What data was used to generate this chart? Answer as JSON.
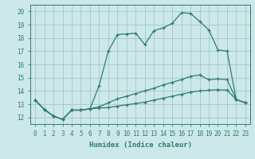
{
  "background_color": "#cce8e8",
  "grid_color": "#aacccc",
  "line_color": "#2e7d6e",
  "xlabel": "Humidex (Indice chaleur)",
  "xlim": [
    -0.5,
    23.5
  ],
  "ylim": [
    11.5,
    20.5
  ],
  "xticks": [
    0,
    1,
    2,
    3,
    4,
    5,
    6,
    7,
    8,
    9,
    10,
    11,
    12,
    13,
    14,
    15,
    16,
    17,
    18,
    19,
    20,
    21,
    22,
    23
  ],
  "yticks": [
    12,
    13,
    14,
    15,
    16,
    17,
    18,
    19,
    20
  ],
  "line1_x": [
    0,
    1,
    2,
    3,
    4,
    5,
    6,
    7,
    8,
    9,
    10,
    11,
    12,
    13,
    14,
    15,
    16,
    17,
    18,
    19,
    20,
    21,
    22,
    23
  ],
  "line1_y": [
    13.3,
    12.6,
    12.1,
    11.85,
    12.55,
    12.55,
    12.65,
    14.4,
    17.0,
    18.25,
    18.3,
    18.35,
    17.5,
    18.55,
    18.75,
    19.1,
    19.9,
    19.85,
    19.25,
    18.6,
    17.1,
    17.0,
    13.35,
    13.1
  ],
  "line2_x": [
    0,
    1,
    2,
    3,
    4,
    5,
    6,
    7,
    8,
    9,
    10,
    11,
    12,
    13,
    14,
    15,
    16,
    17,
    18,
    19,
    20,
    21,
    22,
    23
  ],
  "line2_y": [
    13.3,
    12.6,
    12.1,
    11.85,
    12.55,
    12.55,
    12.65,
    12.8,
    13.1,
    13.4,
    13.6,
    13.8,
    14.0,
    14.2,
    14.45,
    14.65,
    14.85,
    15.1,
    15.2,
    14.85,
    14.9,
    14.85,
    13.35,
    13.1
  ],
  "line3_x": [
    0,
    1,
    2,
    3,
    4,
    5,
    6,
    7,
    8,
    9,
    10,
    11,
    12,
    13,
    14,
    15,
    16,
    17,
    18,
    19,
    20,
    21,
    22,
    23
  ],
  "line3_y": [
    13.3,
    12.6,
    12.1,
    11.85,
    12.55,
    12.55,
    12.65,
    12.7,
    12.75,
    12.85,
    12.95,
    13.05,
    13.15,
    13.3,
    13.45,
    13.6,
    13.75,
    13.9,
    14.0,
    14.05,
    14.1,
    14.05,
    13.35,
    13.1
  ]
}
